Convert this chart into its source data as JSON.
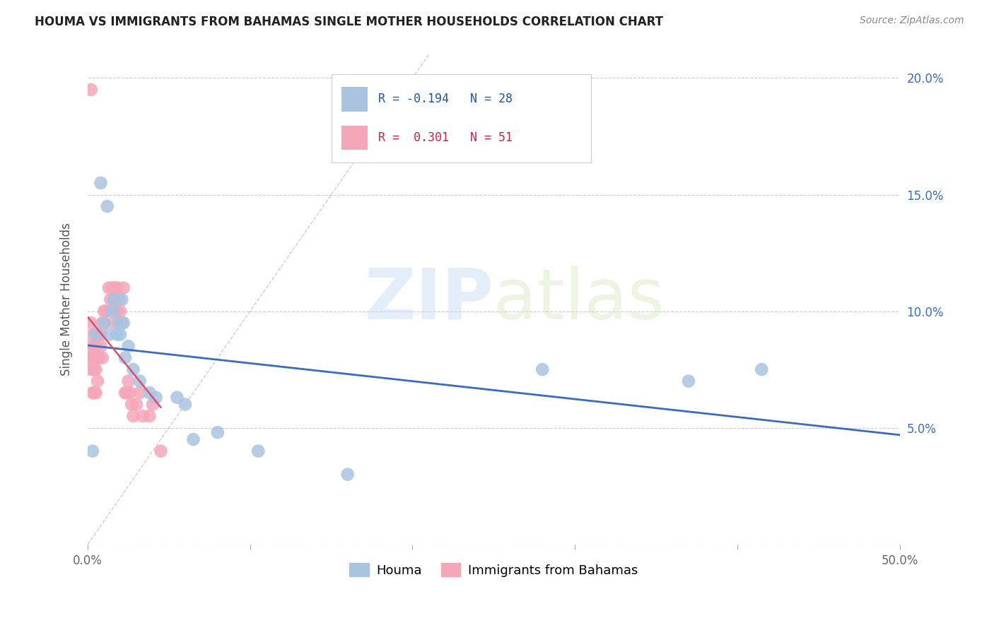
{
  "title": "HOUMA VS IMMIGRANTS FROM BAHAMAS SINGLE MOTHER HOUSEHOLDS CORRELATION CHART",
  "source": "Source: ZipAtlas.com",
  "ylabel": "Single Mother Households",
  "xlim": [
    0.0,
    0.5
  ],
  "ylim": [
    0.0,
    0.21
  ],
  "xticks": [
    0.0,
    0.1,
    0.2,
    0.3,
    0.4,
    0.5
  ],
  "xticklabels": [
    "0.0%",
    "",
    "",
    "",
    "",
    "50.0%"
  ],
  "yticks_right": [
    0.05,
    0.1,
    0.15,
    0.2
  ],
  "yticklabels_right": [
    "5.0%",
    "10.0%",
    "15.0%",
    "20.0%"
  ],
  "houma_color": "#a8c4e0",
  "bahamas_color": "#f4a7b9",
  "houma_line_color": "#3a6bbf",
  "bahamas_line_color": "#d94f6e",
  "ref_line_color": "#d0a0a8",
  "houma_R": -0.194,
  "houma_N": 28,
  "bahamas_R": 0.301,
  "bahamas_N": 51,
  "watermark_zip": "ZIP",
  "watermark_atlas": "atlas",
  "houma_x": [
    0.003,
    0.005,
    0.008,
    0.01,
    0.012,
    0.013,
    0.015,
    0.016,
    0.018,
    0.019,
    0.02,
    0.021,
    0.022,
    0.023,
    0.025,
    0.028,
    0.032,
    0.038,
    0.042,
    0.055,
    0.06,
    0.065,
    0.08,
    0.105,
    0.16,
    0.28,
    0.37,
    0.415
  ],
  "houma_y": [
    0.04,
    0.09,
    0.155,
    0.095,
    0.145,
    0.09,
    0.1,
    0.105,
    0.09,
    0.095,
    0.09,
    0.105,
    0.095,
    0.08,
    0.085,
    0.075,
    0.07,
    0.065,
    0.063,
    0.063,
    0.06,
    0.045,
    0.048,
    0.04,
    0.03,
    0.075,
    0.07,
    0.075
  ],
  "bahamas_x": [
    0.001,
    0.001,
    0.002,
    0.002,
    0.003,
    0.003,
    0.003,
    0.004,
    0.004,
    0.004,
    0.005,
    0.005,
    0.005,
    0.006,
    0.006,
    0.006,
    0.007,
    0.007,
    0.008,
    0.008,
    0.009,
    0.009,
    0.01,
    0.01,
    0.011,
    0.012,
    0.013,
    0.014,
    0.015,
    0.016,
    0.016,
    0.017,
    0.018,
    0.018,
    0.019,
    0.02,
    0.021,
    0.022,
    0.023,
    0.024,
    0.025,
    0.026,
    0.027,
    0.028,
    0.03,
    0.032,
    0.034,
    0.038,
    0.04,
    0.045,
    0.002
  ],
  "bahamas_y": [
    0.085,
    0.08,
    0.095,
    0.075,
    0.09,
    0.08,
    0.065,
    0.085,
    0.075,
    0.065,
    0.085,
    0.075,
    0.065,
    0.09,
    0.08,
    0.07,
    0.09,
    0.08,
    0.09,
    0.085,
    0.095,
    0.08,
    0.1,
    0.095,
    0.1,
    0.1,
    0.11,
    0.105,
    0.11,
    0.105,
    0.095,
    0.11,
    0.11,
    0.1,
    0.105,
    0.1,
    0.095,
    0.11,
    0.065,
    0.065,
    0.07,
    0.065,
    0.06,
    0.055,
    0.06,
    0.065,
    0.055,
    0.055,
    0.06,
    0.04,
    0.195
  ]
}
